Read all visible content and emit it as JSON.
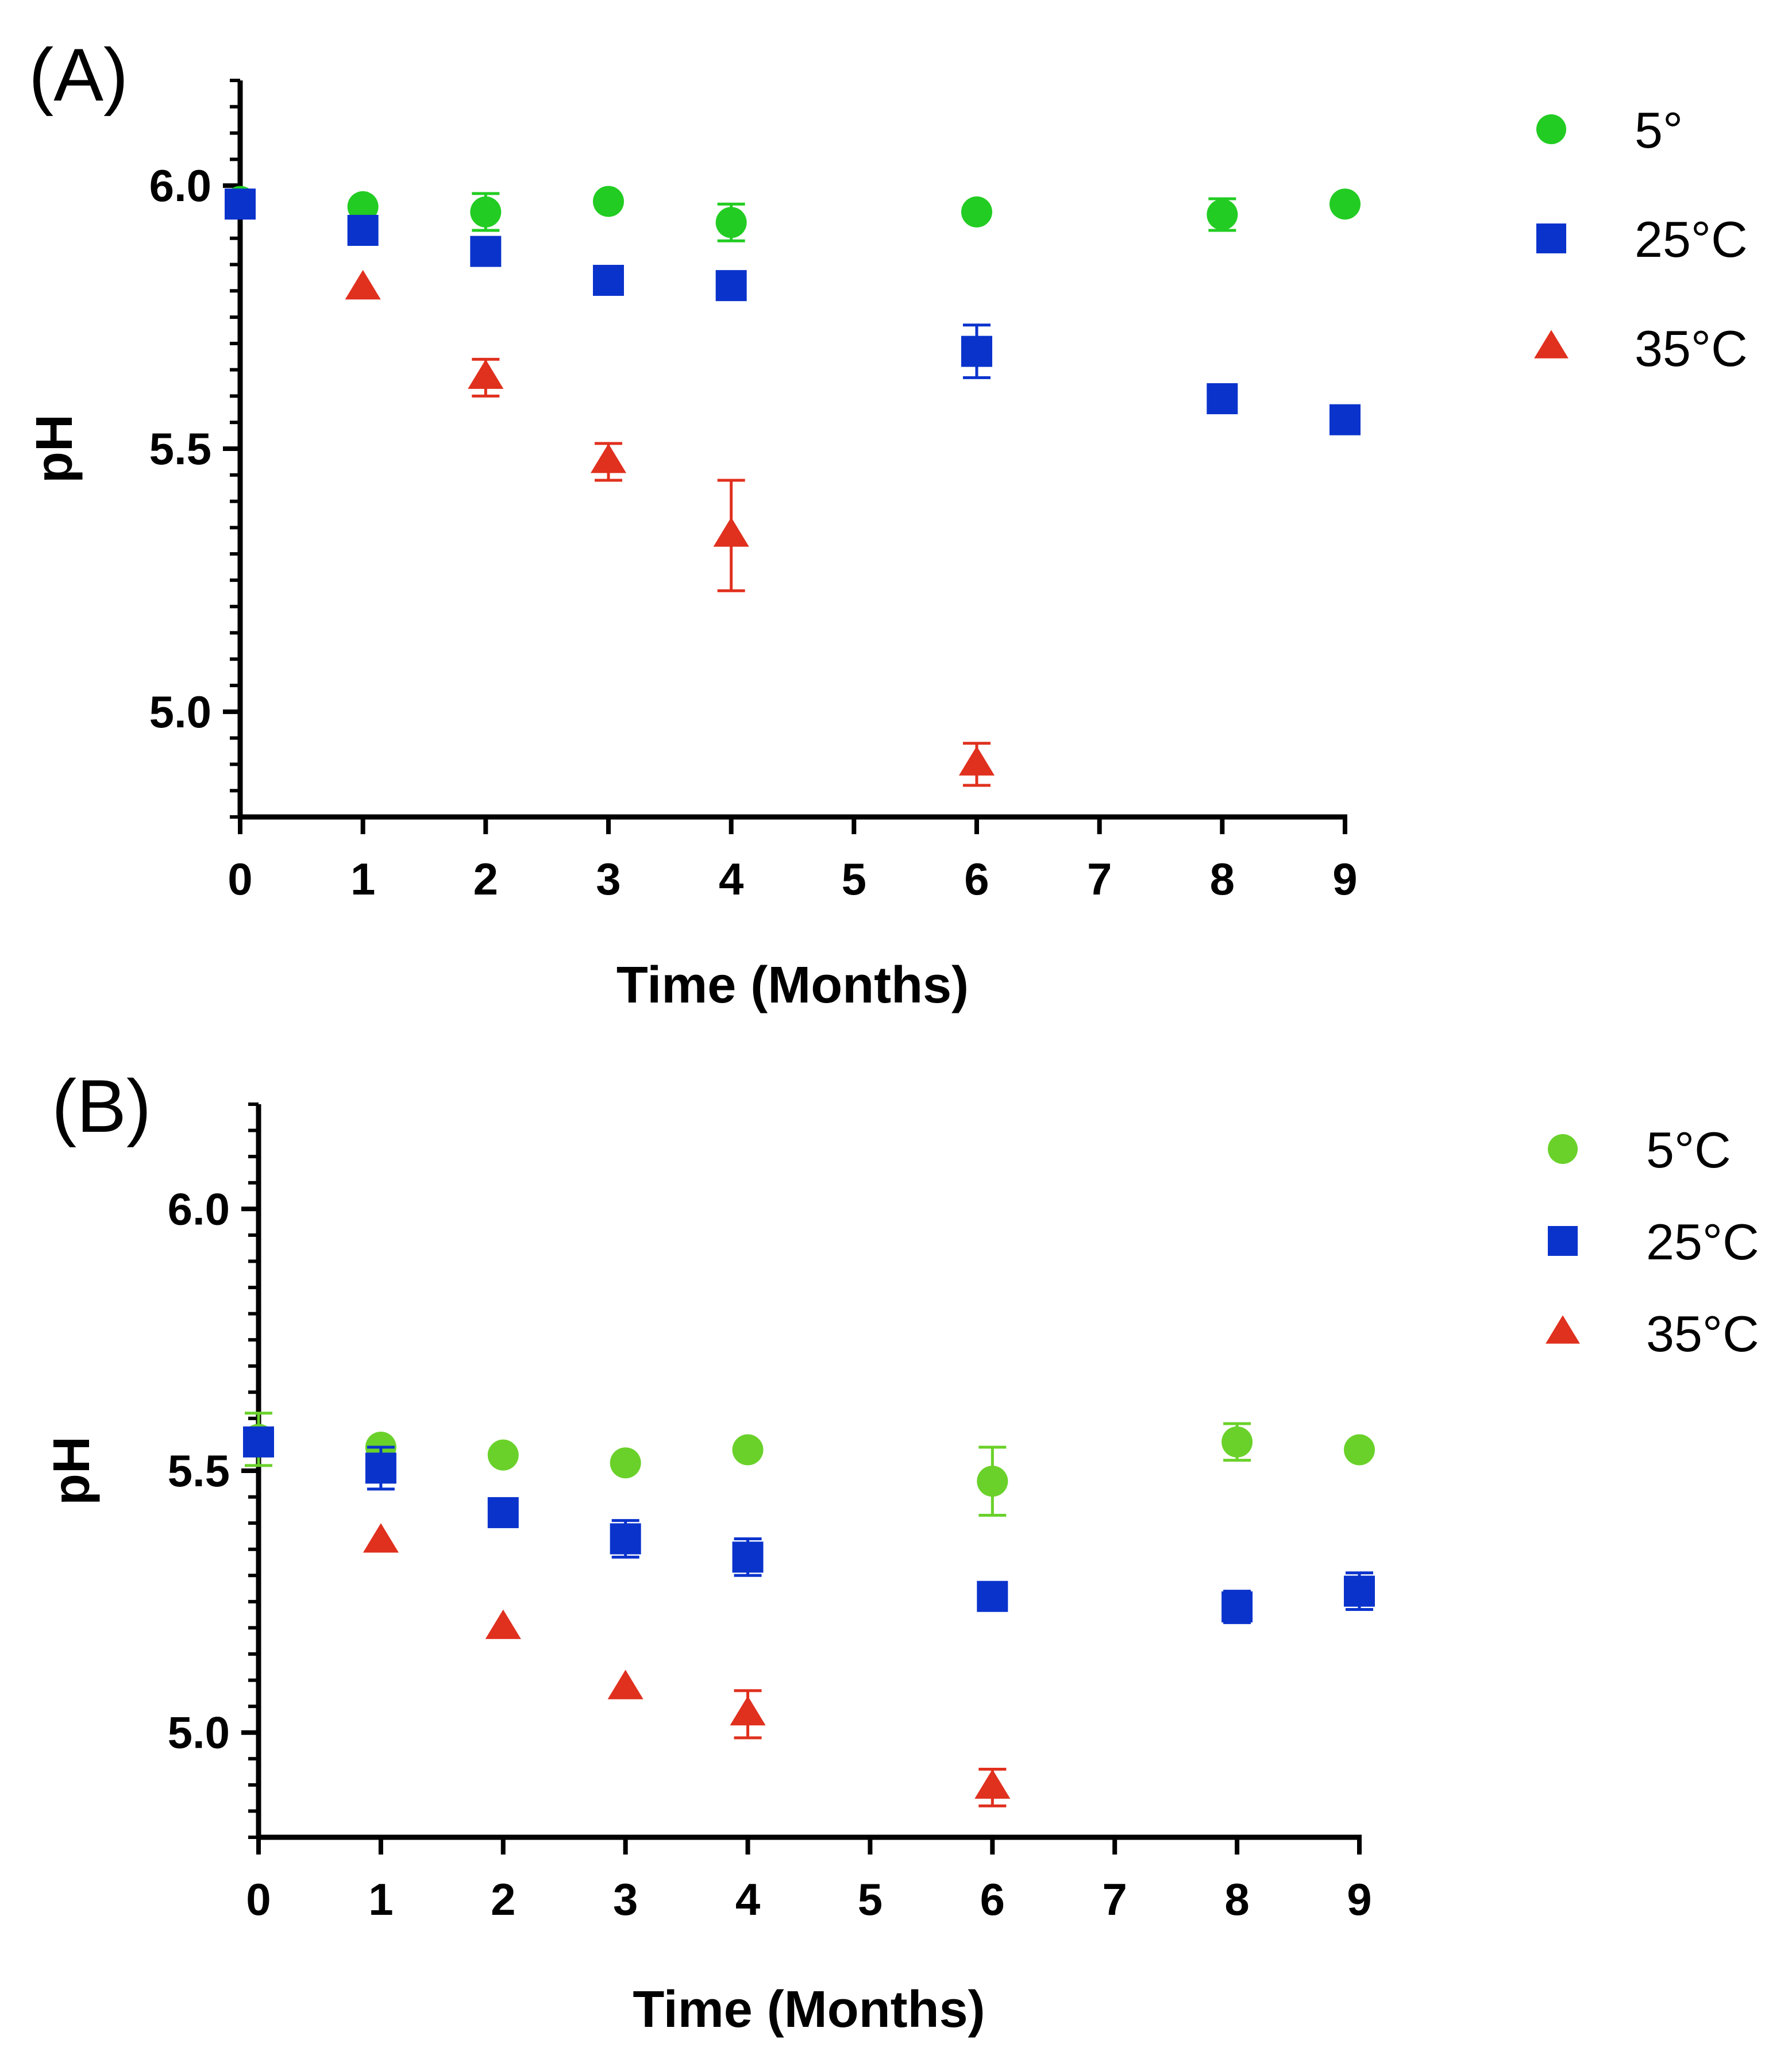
{
  "chart_data": [
    {
      "panel_label": "(A)",
      "type": "scatter",
      "xlabel": "Time (Months)",
      "ylabel": "pH",
      "xlim": [
        0,
        9
      ],
      "ylim": [
        4.8,
        6.2
      ],
      "x_ticks": [
        0,
        1,
        2,
        3,
        4,
        5,
        6,
        7,
        8,
        9
      ],
      "y_ticks": [
        5.0,
        5.5,
        6.0
      ],
      "y_minor_step": 0.05,
      "grid": false,
      "legend_position": "top-right",
      "series": [
        {
          "name": "5°",
          "marker": "circle",
          "color": "#22cc22",
          "points": [
            {
              "x": 0,
              "y": 5.97,
              "err": 0.0
            },
            {
              "x": 1,
              "y": 5.96,
              "err": 0.0
            },
            {
              "x": 2,
              "y": 5.95,
              "err": 0.035
            },
            {
              "x": 3,
              "y": 5.97,
              "err": 0.0
            },
            {
              "x": 4,
              "y": 5.93,
              "err": 0.035
            },
            {
              "x": 6,
              "y": 5.95,
              "err": 0.0
            },
            {
              "x": 8,
              "y": 5.945,
              "err": 0.03
            },
            {
              "x": 9,
              "y": 5.965,
              "err": 0.0
            }
          ]
        },
        {
          "name": "25°C",
          "marker": "square",
          "color": "#0a33cc",
          "points": [
            {
              "x": 0,
              "y": 5.965,
              "err": 0.0
            },
            {
              "x": 1,
              "y": 5.915,
              "err": 0.0
            },
            {
              "x": 2,
              "y": 5.875,
              "err": 0.0
            },
            {
              "x": 3,
              "y": 5.82,
              "err": 0.0
            },
            {
              "x": 4,
              "y": 5.81,
              "err": 0.0
            },
            {
              "x": 6,
              "y": 5.685,
              "err": 0.05
            },
            {
              "x": 8,
              "y": 5.595,
              "err": 0.0
            },
            {
              "x": 9,
              "y": 5.555,
              "err": 0.02
            }
          ]
        },
        {
          "name": "35°C",
          "marker": "triangle",
          "color": "#e0301e",
          "points": [
            {
              "x": 1,
              "y": 5.805,
              "err": 0.0
            },
            {
              "x": 2,
              "y": 5.635,
              "err": 0.035
            },
            {
              "x": 3,
              "y": 5.475,
              "err": 0.035
            },
            {
              "x": 4,
              "y": 5.335,
              "err": 0.105
            },
            {
              "x": 6,
              "y": 4.9,
              "err": 0.04
            }
          ]
        }
      ]
    },
    {
      "panel_label": "(B)",
      "type": "scatter",
      "xlabel": "Time (Months)",
      "ylabel": "pH",
      "xlim": [
        0,
        9
      ],
      "ylim": [
        4.8,
        6.2
      ],
      "x_ticks": [
        0,
        1,
        2,
        3,
        4,
        5,
        6,
        7,
        8,
        9
      ],
      "y_ticks": [
        5.0,
        5.5,
        6.0
      ],
      "y_minor_step": 0.05,
      "grid": false,
      "legend_position": "top-right",
      "series": [
        {
          "name": "5°C",
          "marker": "circle",
          "color": "#6ad12a",
          "points": [
            {
              "x": 0,
              "y": 5.56,
              "err": 0.05
            },
            {
              "x": 1,
              "y": 5.545,
              "err": 0.0
            },
            {
              "x": 2,
              "y": 5.53,
              "err": 0.0
            },
            {
              "x": 3,
              "y": 5.515,
              "err": 0.0
            },
            {
              "x": 4,
              "y": 5.54,
              "err": 0.0
            },
            {
              "x": 6,
              "y": 5.48,
              "err": 0.065
            },
            {
              "x": 8,
              "y": 5.555,
              "err": 0.035
            },
            {
              "x": 9,
              "y": 5.54,
              "err": 0.0
            }
          ]
        },
        {
          "name": "25°C",
          "marker": "square",
          "color": "#0a33cc",
          "points": [
            {
              "x": 0,
              "y": 5.555,
              "err": 0.0
            },
            {
              "x": 1,
              "y": 5.505,
              "err": 0.04
            },
            {
              "x": 2,
              "y": 5.42,
              "err": 0.0
            },
            {
              "x": 3,
              "y": 5.37,
              "err": 0.035
            },
            {
              "x": 4,
              "y": 5.335,
              "err": 0.035
            },
            {
              "x": 6,
              "y": 5.26,
              "err": 0.0
            },
            {
              "x": 8,
              "y": 5.24,
              "err": 0.03
            },
            {
              "x": 9,
              "y": 5.27,
              "err": 0.035
            }
          ]
        },
        {
          "name": "35°C",
          "marker": "triangle",
          "color": "#e0301e",
          "points": [
            {
              "x": 1,
              "y": 5.365,
              "err": 0.0
            },
            {
              "x": 2,
              "y": 5.2,
              "err": 0.0
            },
            {
              "x": 3,
              "y": 5.085,
              "err": 0.0
            },
            {
              "x": 4,
              "y": 5.035,
              "err": 0.045
            },
            {
              "x": 6,
              "y": 4.895,
              "err": 0.035
            }
          ]
        }
      ]
    }
  ]
}
